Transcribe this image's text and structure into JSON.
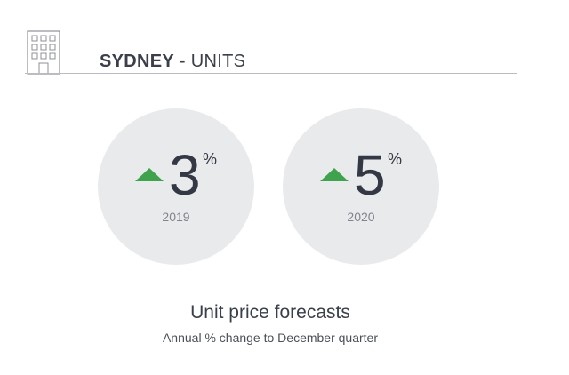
{
  "header": {
    "icon": "building-icon",
    "city": "SYDNEY",
    "separator": " - ",
    "type": "UNITS"
  },
  "forecasts": [
    {
      "direction": "up",
      "value": "3",
      "unit": "%",
      "year": "2019"
    },
    {
      "direction": "up",
      "value": "5",
      "unit": "%",
      "year": "2020"
    }
  ],
  "caption": {
    "title": "Unit price forecasts",
    "subtitle": "Annual % change to December quarter"
  },
  "colors": {
    "arrow_up": "#3fa34d",
    "circle_fill": "#e9eaec",
    "text_dark": "#333844",
    "text_muted": "#80848c",
    "rule": "#b9bcc2"
  }
}
